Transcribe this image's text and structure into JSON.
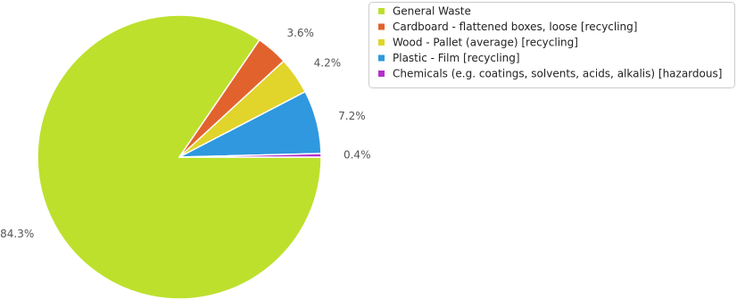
{
  "chart_data": {
    "type": "pie",
    "slices": [
      {
        "label": "General Waste",
        "value": 84.3,
        "display": "84.3%",
        "color": "#bde02d"
      },
      {
        "label": "Cardboard - flattened boxes, loose [recycling]",
        "value": 3.6,
        "display": "3.6%",
        "color": "#e2622e"
      },
      {
        "label": "Wood - Pallet (average) [recycling]",
        "value": 4.2,
        "display": "4.2%",
        "color": "#e1d42b"
      },
      {
        "label": "Plastic - Film  [recycling]",
        "value": 7.2,
        "display": "7.2%",
        "color": "#2f98df"
      },
      {
        "label": "Chemicals (e.g. coatings, solvents, acids, alkalis) [hazardous]",
        "value": 0.4,
        "display": "0.4%",
        "color": "#b32fc9"
      }
    ],
    "legend_position": "top-right"
  }
}
